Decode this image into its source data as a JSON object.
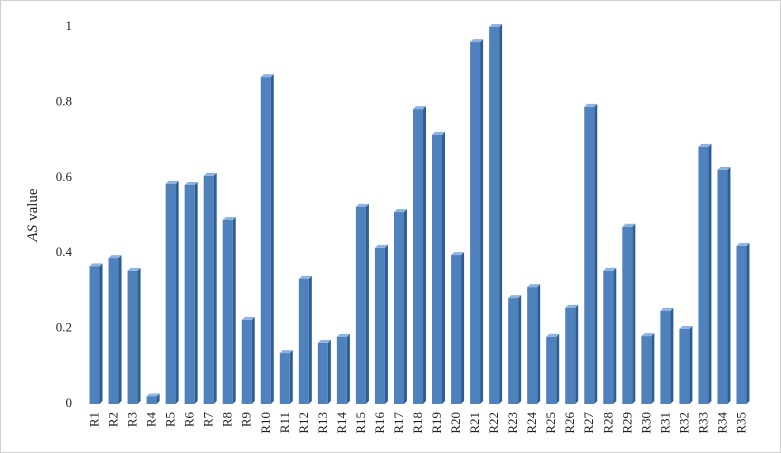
{
  "chart_data": {
    "type": "bar",
    "y_label_parts": [
      "AS",
      "value"
    ],
    "categories": [
      "R1",
      "R2",
      "R3",
      "R4",
      "R5",
      "R6",
      "R7",
      "R8",
      "R9",
      "R10",
      "R11",
      "R12",
      "R13",
      "R14",
      "R15",
      "R16",
      "R17",
      "R18",
      "R19",
      "R20",
      "R21",
      "R22",
      "R23",
      "R24",
      "R25",
      "R26",
      "R27",
      "R28",
      "R29",
      "R30",
      "R31",
      "R32",
      "R33",
      "R34",
      "R35"
    ],
    "values": [
      0.365,
      0.387,
      0.353,
      0.02,
      0.584,
      0.581,
      0.605,
      0.488,
      0.223,
      0.867,
      0.135,
      0.332,
      0.162,
      0.178,
      0.523,
      0.414,
      0.509,
      0.782,
      0.714,
      0.395,
      0.96,
      1.0,
      0.281,
      0.31,
      0.178,
      0.255,
      0.788,
      0.353,
      0.47,
      0.18,
      0.247,
      0.199,
      0.682,
      0.621,
      0.419
    ],
    "color": "#4f81bd",
    "ylim": [
      0,
      1
    ],
    "yticks": [
      0,
      0.2,
      0.4,
      0.6,
      0.8,
      1
    ],
    "grid": false
  }
}
